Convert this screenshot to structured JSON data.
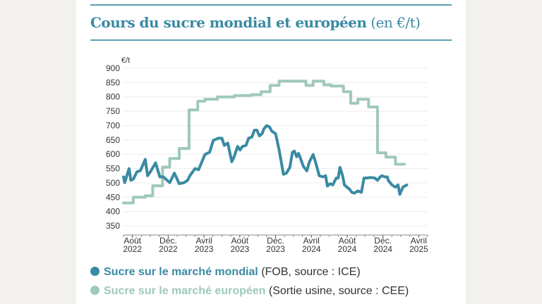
{
  "title": {
    "main": "Cours du sucre mondial et européen",
    "unit": "(en €/t)"
  },
  "legend": [
    {
      "name": "Sucre sur le marché mondial",
      "note": "(FOB, source : ICE)",
      "color": "#3a8aa3"
    },
    {
      "name": "Sucre sur le marché européen",
      "note": "(Sortie usine, source : CEE)",
      "color": "#9fc9b9"
    }
  ],
  "chart_data": {
    "type": "line",
    "ylabel": "€/t",
    "ylim": [
      350,
      900
    ],
    "yticks": [
      350,
      400,
      450,
      500,
      550,
      600,
      650,
      700,
      750,
      800,
      850,
      900
    ],
    "xlim": [
      "2022-07-01",
      "2025-05-01"
    ],
    "xticks": [
      {
        "date": "2022-08-01",
        "label": [
          "Août",
          "2022"
        ]
      },
      {
        "date": "2022-12-01",
        "label": [
          "Déc.",
          "2022"
        ]
      },
      {
        "date": "2023-04-01",
        "label": [
          "Avril",
          "2023"
        ]
      },
      {
        "date": "2023-08-01",
        "label": [
          "Août",
          "2023"
        ]
      },
      {
        "date": "2023-12-01",
        "label": [
          "Déc.",
          "2023"
        ]
      },
      {
        "date": "2024-04-01",
        "label": [
          "Avril",
          "2024"
        ]
      },
      {
        "date": "2024-08-01",
        "label": [
          "Août",
          "2024"
        ]
      },
      {
        "date": "2024-12-01",
        "label": [
          "Déc.",
          "2024"
        ]
      },
      {
        "date": "2025-04-01",
        "label": [
          "Avril",
          "2025"
        ]
      }
    ],
    "grid": "horizontal",
    "legend_placement": "bottom",
    "series": [
      {
        "name": "Sucre sur le marché mondial",
        "color": "#3a8aa3",
        "points": [
          [
            "2022-07-01",
            521
          ],
          [
            "2022-07-05",
            501
          ],
          [
            "2022-07-20",
            550
          ],
          [
            "2022-07-26",
            509
          ],
          [
            "2022-08-04",
            513
          ],
          [
            "2022-08-16",
            538
          ],
          [
            "2022-08-28",
            543
          ],
          [
            "2022-09-14",
            582
          ],
          [
            "2022-09-22",
            525
          ],
          [
            "2022-10-03",
            542
          ],
          [
            "2022-10-19",
            570
          ],
          [
            "2022-11-03",
            521
          ],
          [
            "2022-11-15",
            521
          ],
          [
            "2022-12-06",
            501
          ],
          [
            "2022-12-22",
            534
          ],
          [
            "2023-01-08",
            497
          ],
          [
            "2023-01-25",
            501
          ],
          [
            "2023-02-06",
            509
          ],
          [
            "2023-02-14",
            525
          ],
          [
            "2023-03-01",
            550
          ],
          [
            "2023-03-13",
            546
          ],
          [
            "2023-04-04",
            599
          ],
          [
            "2023-04-20",
            607
          ],
          [
            "2023-05-02",
            648
          ],
          [
            "2023-05-19",
            656
          ],
          [
            "2023-06-01",
            656
          ],
          [
            "2023-06-09",
            631
          ],
          [
            "2023-06-21",
            639
          ],
          [
            "2023-07-04",
            574
          ],
          [
            "2023-07-12",
            591
          ],
          [
            "2023-07-24",
            627
          ],
          [
            "2023-08-02",
            615
          ],
          [
            "2023-08-10",
            627
          ],
          [
            "2023-08-22",
            631
          ],
          [
            "2023-08-31",
            656
          ],
          [
            "2023-09-12",
            660
          ],
          [
            "2023-09-20",
            684
          ],
          [
            "2023-09-29",
            684
          ],
          [
            "2023-10-07",
            664
          ],
          [
            "2023-10-16",
            672
          ],
          [
            "2023-10-22",
            688
          ],
          [
            "2023-11-01",
            700
          ],
          [
            "2023-11-10",
            696
          ],
          [
            "2023-11-19",
            680
          ],
          [
            "2023-12-01",
            672
          ],
          [
            "2023-12-13",
            615
          ],
          [
            "2023-12-28",
            530
          ],
          [
            "2024-01-07",
            534
          ],
          [
            "2024-01-19",
            554
          ],
          [
            "2024-01-28",
            607
          ],
          [
            "2024-02-04",
            611
          ],
          [
            "2024-02-12",
            591
          ],
          [
            "2024-02-18",
            603
          ],
          [
            "2024-02-23",
            591
          ],
          [
            "2024-03-04",
            558
          ],
          [
            "2024-03-16",
            542
          ],
          [
            "2024-03-25",
            574
          ],
          [
            "2024-04-07",
            599
          ],
          [
            "2024-04-16",
            570
          ],
          [
            "2024-04-28",
            525
          ],
          [
            "2024-05-10",
            521
          ],
          [
            "2024-05-19",
            525
          ],
          [
            "2024-05-25",
            489
          ],
          [
            "2024-06-04",
            497
          ],
          [
            "2024-06-13",
            493
          ],
          [
            "2024-06-25",
            517
          ],
          [
            "2024-07-01",
            517
          ],
          [
            "2024-07-07",
            554
          ],
          [
            "2024-07-16",
            525
          ],
          [
            "2024-07-22",
            493
          ],
          [
            "2024-08-10",
            477
          ],
          [
            "2024-08-16",
            468
          ],
          [
            "2024-08-25",
            464
          ],
          [
            "2024-09-07",
            472
          ],
          [
            "2024-09-19",
            467
          ],
          [
            "2024-09-28",
            517
          ],
          [
            "2024-10-07",
            517
          ],
          [
            "2024-10-19",
            519
          ],
          [
            "2024-11-04",
            517
          ],
          [
            "2024-11-13",
            509
          ],
          [
            "2024-11-22",
            521
          ],
          [
            "2024-11-28",
            525
          ],
          [
            "2024-12-07",
            521
          ],
          [
            "2024-12-16",
            521
          ],
          [
            "2024-12-19",
            509
          ],
          [
            "2025-01-01",
            493
          ],
          [
            "2025-01-13",
            485
          ],
          [
            "2025-01-22",
            493
          ],
          [
            "2025-01-28",
            460
          ],
          [
            "2025-02-08",
            485
          ],
          [
            "2025-02-21",
            493
          ]
        ]
      },
      {
        "name": "Sucre sur le marché européen",
        "color": "#9fc9b9",
        "step": true,
        "points": [
          [
            "2022-07-01",
            430
          ],
          [
            "2022-08-04",
            450
          ],
          [
            "2022-09-14",
            455
          ],
          [
            "2022-10-09",
            490
          ],
          [
            "2022-11-12",
            555
          ],
          [
            "2022-12-06",
            585
          ],
          [
            "2023-01-08",
            620
          ],
          [
            "2023-02-11",
            755
          ],
          [
            "2023-03-10",
            785
          ],
          [
            "2023-04-04",
            792
          ],
          [
            "2023-05-16",
            800
          ],
          [
            "2023-07-13",
            805
          ],
          [
            "2023-09-10",
            808
          ],
          [
            "2023-10-13",
            818
          ],
          [
            "2023-11-13",
            840
          ],
          [
            "2023-12-13",
            855
          ],
          [
            "2024-03-13",
            840
          ],
          [
            "2024-04-07",
            855
          ],
          [
            "2024-05-13",
            842
          ],
          [
            "2024-06-07",
            838
          ],
          [
            "2024-07-19",
            818
          ],
          [
            "2024-08-13",
            778
          ],
          [
            "2024-09-07",
            792
          ],
          [
            "2024-10-13",
            765
          ],
          [
            "2024-11-13",
            605
          ],
          [
            "2024-12-11",
            590
          ],
          [
            "2025-01-13",
            565
          ],
          [
            "2025-02-13",
            565
          ]
        ]
      }
    ]
  }
}
